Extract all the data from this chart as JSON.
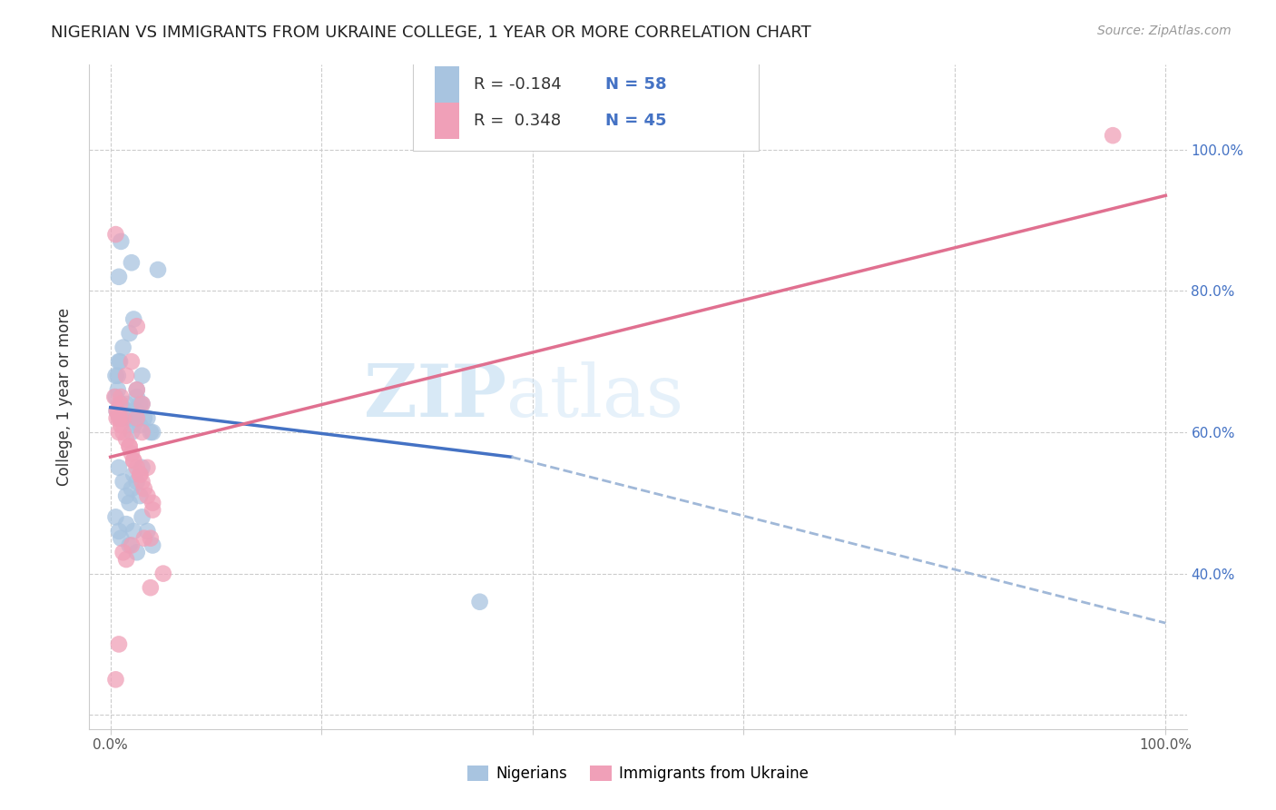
{
  "title": "NIGERIAN VS IMMIGRANTS FROM UKRAINE COLLEGE, 1 YEAR OR MORE CORRELATION CHART",
  "source": "Source: ZipAtlas.com",
  "ylabel": "College, 1 year or more",
  "legend_label1": "Nigerians",
  "legend_label2": "Immigrants from Ukraine",
  "R1": -0.184,
  "N1": 58,
  "R2": 0.348,
  "N2": 45,
  "color_blue": "#a8c4e0",
  "color_pink": "#f0a0b8",
  "line_color_blue": "#4472c4",
  "line_color_pink": "#e07090",
  "line_color_dash": "#a0b8d8",
  "watermark_color": "#cce0f0",
  "nigerian_x": [
    0.01,
    0.008,
    0.045,
    0.02,
    0.015,
    0.025,
    0.03,
    0.018,
    0.022,
    0.01,
    0.005,
    0.007,
    0.012,
    0.015,
    0.018,
    0.02,
    0.025,
    0.028,
    0.03,
    0.035,
    0.04,
    0.008,
    0.012,
    0.015,
    0.018,
    0.02,
    0.022,
    0.025,
    0.028,
    0.03,
    0.005,
    0.008,
    0.01,
    0.015,
    0.018,
    0.022,
    0.025,
    0.03,
    0.035,
    0.04,
    0.006,
    0.01,
    0.015,
    0.02,
    0.025,
    0.028,
    0.032,
    0.038,
    0.007,
    0.009,
    0.005,
    0.008,
    0.012,
    0.018,
    0.022,
    0.01,
    0.015,
    0.35
  ],
  "nigerian_y": [
    0.87,
    0.82,
    0.83,
    0.84,
    0.63,
    0.65,
    0.68,
    0.63,
    0.61,
    0.64,
    0.65,
    0.66,
    0.63,
    0.64,
    0.62,
    0.6,
    0.63,
    0.61,
    0.64,
    0.62,
    0.6,
    0.55,
    0.53,
    0.51,
    0.5,
    0.52,
    0.54,
    0.53,
    0.51,
    0.55,
    0.48,
    0.46,
    0.45,
    0.47,
    0.44,
    0.46,
    0.43,
    0.48,
    0.46,
    0.44,
    0.63,
    0.62,
    0.63,
    0.62,
    0.66,
    0.64,
    0.62,
    0.6,
    0.68,
    0.7,
    0.68,
    0.7,
    0.72,
    0.74,
    0.76,
    0.63,
    0.62,
    0.36
  ],
  "ukraine_x": [
    0.005,
    0.025,
    0.01,
    0.015,
    0.02,
    0.025,
    0.03,
    0.035,
    0.04,
    0.006,
    0.008,
    0.012,
    0.018,
    0.022,
    0.028,
    0.032,
    0.038,
    0.007,
    0.01,
    0.015,
    0.02,
    0.025,
    0.03,
    0.035,
    0.04,
    0.009,
    0.008,
    0.012,
    0.018,
    0.022,
    0.028,
    0.032,
    0.038,
    0.05,
    0.015,
    0.02,
    0.025,
    0.03,
    0.004,
    0.006,
    0.005,
    0.008,
    0.012,
    0.009,
    0.95
  ],
  "ukraine_y": [
    0.88,
    0.75,
    0.65,
    0.68,
    0.7,
    0.66,
    0.64,
    0.55,
    0.5,
    0.62,
    0.6,
    0.62,
    0.58,
    0.56,
    0.54,
    0.52,
    0.45,
    0.63,
    0.61,
    0.59,
    0.57,
    0.55,
    0.53,
    0.51,
    0.49,
    0.64,
    0.62,
    0.6,
    0.58,
    0.56,
    0.54,
    0.45,
    0.38,
    0.4,
    0.42,
    0.44,
    0.62,
    0.6,
    0.65,
    0.63,
    0.25,
    0.3,
    0.43,
    0.62,
    1.02
  ],
  "xmin": 0.0,
  "xmax": 1.0,
  "ymin": 0.18,
  "ymax": 1.12,
  "line_blue_x0": 0.0,
  "line_blue_x1": 0.38,
  "line_blue_y0": 0.635,
  "line_blue_y1": 0.565,
  "line_pink_x0": 0.0,
  "line_pink_x1": 1.0,
  "line_pink_y0": 0.565,
  "line_pink_y1": 0.935,
  "line_dash_x0": 0.38,
  "line_dash_x1": 1.0,
  "line_dash_y0": 0.565,
  "line_dash_y1": 0.33
}
